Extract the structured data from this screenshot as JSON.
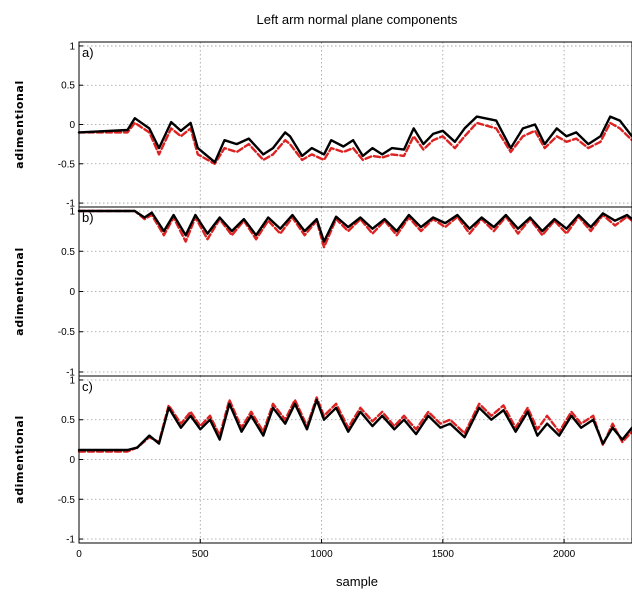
{
  "chart_data": {
    "type": "line",
    "title": "Left arm normal plane components",
    "xlabel": "sample",
    "xlim": [
      0,
      2280
    ],
    "x_ticks": [
      0,
      500,
      1000,
      1500,
      2000
    ],
    "grid": true,
    "colors": {
      "series1": "#000000",
      "series2": "#dd2222",
      "grid": "#9a9a9a",
      "axis": "#000000"
    },
    "line_styles": {
      "series1": "solid",
      "series2": "dashed"
    },
    "panels": [
      {
        "label": "a)",
        "ylabel": "adimentional",
        "ylim": [
          -1.05,
          1.05
        ],
        "y_ticks": [
          1,
          0.5,
          0,
          -0.5,
          -1
        ],
        "x": [
          0,
          200,
          230,
          290,
          330,
          380,
          420,
          460,
          490,
          560,
          600,
          650,
          700,
          760,
          800,
          850,
          870,
          920,
          960,
          1010,
          1040,
          1090,
          1130,
          1170,
          1210,
          1250,
          1290,
          1340,
          1380,
          1420,
          1460,
          1500,
          1550,
          1590,
          1640,
          1720,
          1780,
          1830,
          1880,
          1920,
          1970,
          2010,
          2050,
          2100,
          2150,
          2190,
          2230,
          2280
        ],
        "series": [
          {
            "name": "",
            "values": [
              -0.1,
              -0.07,
              0.08,
              -0.05,
              -0.3,
              0.03,
              -0.08,
              0.02,
              -0.3,
              -0.48,
              -0.2,
              -0.25,
              -0.18,
              -0.38,
              -0.3,
              -0.1,
              -0.15,
              -0.4,
              -0.3,
              -0.38,
              -0.2,
              -0.28,
              -0.2,
              -0.4,
              -0.3,
              -0.38,
              -0.3,
              -0.32,
              -0.05,
              -0.25,
              -0.12,
              -0.08,
              -0.22,
              -0.05,
              0.1,
              0.05,
              -0.3,
              -0.05,
              0.0,
              -0.25,
              -0.05,
              -0.15,
              -0.1,
              -0.25,
              -0.15,
              0.1,
              0.05,
              -0.15
            ]
          },
          {
            "name": "",
            "values": [
              -0.1,
              -0.1,
              0.02,
              -0.1,
              -0.38,
              -0.05,
              -0.15,
              -0.05,
              -0.38,
              -0.5,
              -0.3,
              -0.35,
              -0.25,
              -0.45,
              -0.38,
              -0.2,
              -0.25,
              -0.45,
              -0.38,
              -0.45,
              -0.3,
              -0.35,
              -0.3,
              -0.45,
              -0.4,
              -0.42,
              -0.38,
              -0.4,
              -0.15,
              -0.32,
              -0.2,
              -0.15,
              -0.3,
              -0.15,
              0.02,
              -0.05,
              -0.35,
              -0.15,
              -0.08,
              -0.3,
              -0.15,
              -0.22,
              -0.18,
              -0.3,
              -0.22,
              0.02,
              -0.05,
              -0.2
            ]
          }
        ]
      },
      {
        "label": "b)",
        "ylabel": "adimentional",
        "ylim": [
          -1.05,
          1.05
        ],
        "y_ticks": [
          1,
          0.5,
          0,
          -0.5,
          -1
        ],
        "x": [
          0,
          230,
          270,
          300,
          350,
          390,
          440,
          480,
          530,
          580,
          630,
          680,
          730,
          780,
          830,
          880,
          930,
          980,
          1010,
          1060,
          1110,
          1160,
          1210,
          1260,
          1310,
          1360,
          1410,
          1460,
          1510,
          1560,
          1610,
          1660,
          1710,
          1760,
          1810,
          1860,
          1910,
          1960,
          2010,
          2060,
          2110,
          2160,
          2210,
          2260,
          2280
        ],
        "series": [
          {
            "name": "",
            "values": [
              1.0,
              1.0,
              0.92,
              0.98,
              0.75,
              0.95,
              0.7,
              0.95,
              0.72,
              0.92,
              0.75,
              0.9,
              0.7,
              0.92,
              0.78,
              0.95,
              0.75,
              0.9,
              0.62,
              0.93,
              0.8,
              0.92,
              0.78,
              0.9,
              0.75,
              0.95,
              0.8,
              0.92,
              0.85,
              0.95,
              0.78,
              0.92,
              0.8,
              0.95,
              0.78,
              0.92,
              0.75,
              0.9,
              0.78,
              0.95,
              0.8,
              0.97,
              0.88,
              0.95,
              0.9
            ]
          },
          {
            "name": "",
            "values": [
              1.0,
              1.0,
              0.9,
              0.95,
              0.7,
              0.92,
              0.62,
              0.92,
              0.65,
              0.9,
              0.7,
              0.88,
              0.65,
              0.88,
              0.72,
              0.92,
              0.7,
              0.88,
              0.55,
              0.9,
              0.75,
              0.9,
              0.72,
              0.88,
              0.7,
              0.92,
              0.75,
              0.9,
              0.8,
              0.93,
              0.72,
              0.9,
              0.75,
              0.93,
              0.72,
              0.9,
              0.7,
              0.88,
              0.72,
              0.93,
              0.75,
              0.95,
              0.82,
              0.93,
              0.88
            ]
          }
        ]
      },
      {
        "label": "c)",
        "ylabel": "adimentional",
        "ylim": [
          -1.05,
          1.05
        ],
        "y_ticks": [
          1,
          0.5,
          0,
          -0.5,
          -1
        ],
        "x": [
          0,
          200,
          240,
          290,
          330,
          370,
          420,
          460,
          500,
          540,
          580,
          620,
          670,
          710,
          760,
          800,
          850,
          890,
          940,
          980,
          1010,
          1060,
          1110,
          1160,
          1210,
          1250,
          1300,
          1340,
          1390,
          1440,
          1490,
          1530,
          1590,
          1650,
          1700,
          1750,
          1800,
          1850,
          1890,
          1930,
          1980,
          2030,
          2070,
          2120,
          2160,
          2200,
          2240,
          2280
        ],
        "series": [
          {
            "name": "",
            "values": [
              0.12,
              0.12,
              0.15,
              0.3,
              0.2,
              0.65,
              0.4,
              0.55,
              0.38,
              0.5,
              0.25,
              0.7,
              0.35,
              0.55,
              0.3,
              0.65,
              0.45,
              0.7,
              0.38,
              0.75,
              0.5,
              0.65,
              0.35,
              0.6,
              0.42,
              0.55,
              0.38,
              0.5,
              0.32,
              0.55,
              0.4,
              0.45,
              0.28,
              0.65,
              0.5,
              0.62,
              0.35,
              0.6,
              0.3,
              0.45,
              0.3,
              0.55,
              0.4,
              0.5,
              0.2,
              0.4,
              0.25,
              0.4
            ]
          },
          {
            "name": "",
            "values": [
              0.1,
              0.1,
              0.15,
              0.28,
              0.22,
              0.68,
              0.45,
              0.6,
              0.42,
              0.55,
              0.3,
              0.75,
              0.4,
              0.6,
              0.35,
              0.7,
              0.5,
              0.75,
              0.42,
              0.78,
              0.55,
              0.7,
              0.4,
              0.65,
              0.48,
              0.6,
              0.42,
              0.55,
              0.38,
              0.6,
              0.45,
              0.5,
              0.33,
              0.7,
              0.55,
              0.68,
              0.4,
              0.65,
              0.38,
              0.55,
              0.35,
              0.6,
              0.45,
              0.55,
              0.18,
              0.45,
              0.22,
              0.35
            ]
          }
        ]
      }
    ]
  }
}
